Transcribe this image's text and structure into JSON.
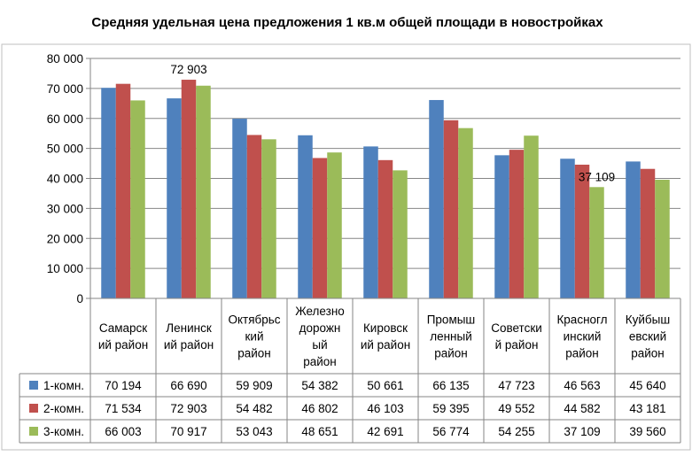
{
  "chart_data": {
    "type": "bar",
    "title": "Средняя удельная цена предложения 1 кв.м общей площади в новостройках",
    "xlabel": "",
    "ylabel": "",
    "ylim": [
      0,
      80000
    ],
    "yticks": [
      "0",
      "10 000",
      "20 000",
      "30 000",
      "40 000",
      "50 000",
      "60 000",
      "70 000",
      "80 000"
    ],
    "grid": true,
    "legend_position": "data-table-left",
    "categories": [
      [
        "Самарск",
        "ий район"
      ],
      [
        "Ленинск",
        "ий район"
      ],
      [
        "Октябрьс",
        "кий",
        "район"
      ],
      [
        "Железно",
        "дорожн",
        "ый",
        "район"
      ],
      [
        "Кировск",
        "ий район"
      ],
      [
        "Промыш",
        "ленный",
        "район"
      ],
      [
        "Советски",
        "й район"
      ],
      [
        "Красногл",
        "инский",
        "район"
      ],
      [
        "Куйбыш",
        "евский",
        "район"
      ]
    ],
    "series": [
      {
        "name": "1-комн.",
        "color": "#4F81BD",
        "values": [
          70194,
          66690,
          59909,
          54382,
          50661,
          66135,
          47723,
          46563,
          45640
        ],
        "labels": [
          "70 194",
          "66 690",
          "59 909",
          "54 382",
          "50 661",
          "66 135",
          "47 723",
          "46 563",
          "45 640"
        ]
      },
      {
        "name": "2-комн.",
        "color": "#C0504D",
        "values": [
          71534,
          72903,
          54482,
          46802,
          46103,
          59395,
          49552,
          44582,
          43181
        ],
        "labels": [
          "71 534",
          "72 903",
          "54 482",
          "46 802",
          "46 103",
          "59 395",
          "49 552",
          "44 582",
          "43 181"
        ]
      },
      {
        "name": "3-комн.",
        "color": "#9BBB59",
        "values": [
          66003,
          70917,
          53043,
          48651,
          42691,
          56774,
          54255,
          37109,
          39560
        ],
        "labels": [
          "66 003",
          "70 917",
          "53 043",
          "48 651",
          "42 691",
          "56 774",
          "54 255",
          "37 109",
          "39 560"
        ]
      }
    ],
    "annotations": [
      {
        "series": 1,
        "index": 1,
        "text": "72 903"
      },
      {
        "series": 2,
        "index": 7,
        "text": "37 109"
      }
    ]
  }
}
